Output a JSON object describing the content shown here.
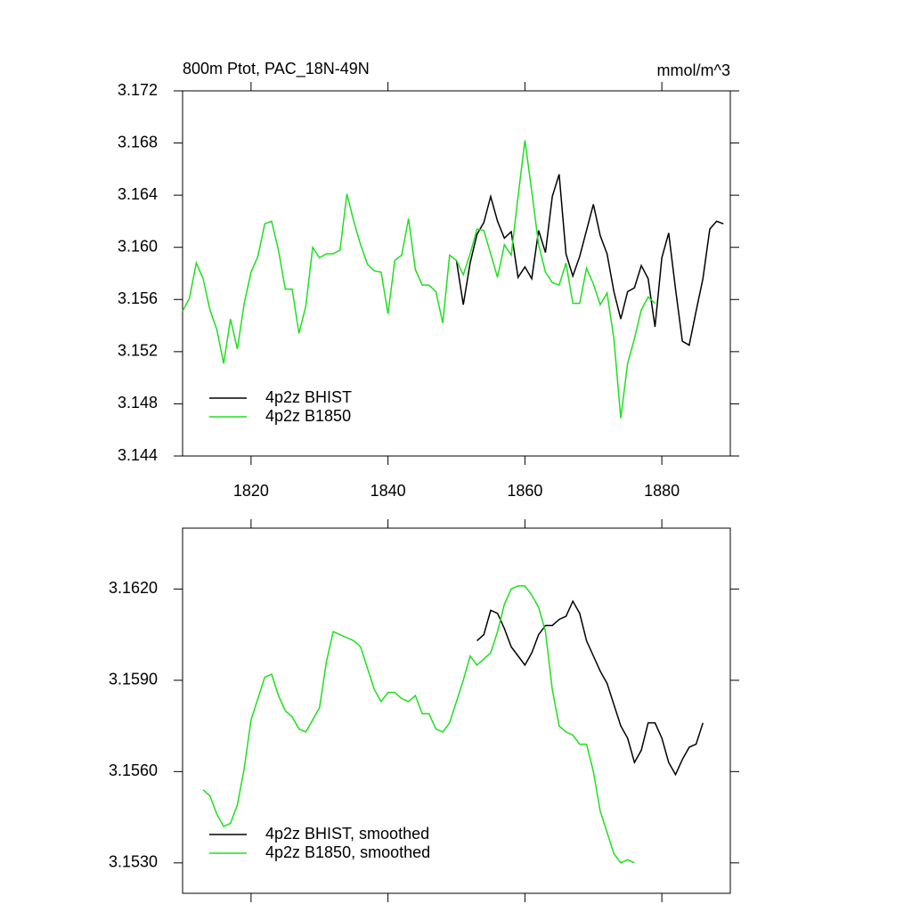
{
  "chart_data": [
    {
      "type": "line",
      "title": "800m Ptot, PAC_18N-49N",
      "units": "mmol/m^3",
      "xlim": [
        1810,
        1890
      ],
      "xticks": [
        1820,
        1840,
        1860,
        1880
      ],
      "show_xtick_labels": true,
      "ylim": [
        3.144,
        3.172
      ],
      "yticks": [
        3.144,
        3.148,
        3.152,
        3.156,
        {
          "value": 3.16,
          "label": "3.160"
        },
        3.164,
        3.168,
        3.172
      ],
      "legend": "lower left",
      "series": [
        {
          "name": "4p2z BHIST",
          "color": "#000000",
          "x": [
            1850,
            1851,
            1852,
            1853,
            1854,
            1855,
            1856,
            1857,
            1858,
            1859,
            1860,
            1861,
            1862,
            1863,
            1864,
            1865,
            1866,
            1867,
            1868,
            1869,
            1870,
            1871,
            1872,
            1873,
            1874,
            1875,
            1876,
            1877,
            1878,
            1879,
            1880,
            1881,
            1882,
            1883,
            1884,
            1885,
            1886,
            1887,
            1888,
            1889
          ],
          "values": [
            3.159,
            3.1556,
            3.1588,
            3.161,
            3.1619,
            3.1639,
            3.162,
            3.1607,
            3.1612,
            3.1577,
            3.1585,
            3.1576,
            3.1613,
            3.1596,
            3.1639,
            3.1656,
            3.1595,
            3.1578,
            3.1593,
            3.1613,
            3.1633,
            3.1609,
            3.1595,
            3.1566,
            3.1545,
            3.1566,
            3.1569,
            3.1586,
            3.1576,
            3.1539,
            3.1592,
            3.1611,
            3.1568,
            3.1528,
            3.1525,
            3.1551,
            3.1576,
            3.1614,
            3.162,
            3.1618
          ]
        },
        {
          "name": "4p2z B1850",
          "color": "#1ee01e",
          "x": [
            1810,
            1811,
            1812,
            1813,
            1814,
            1815,
            1816,
            1817,
            1818,
            1819,
            1820,
            1821,
            1822,
            1823,
            1824,
            1825,
            1826,
            1827,
            1828,
            1829,
            1830,
            1831,
            1832,
            1833,
            1834,
            1835,
            1836,
            1837,
            1838,
            1839,
            1840,
            1841,
            1842,
            1843,
            1844,
            1845,
            1846,
            1847,
            1848,
            1849,
            1850,
            1851,
            1852,
            1853,
            1854,
            1855,
            1856,
            1857,
            1858,
            1859,
            1860,
            1861,
            1862,
            1863,
            1864,
            1865,
            1866,
            1867,
            1868,
            1869,
            1870,
            1871,
            1872,
            1873,
            1874,
            1875,
            1876,
            1877,
            1878,
            1879
          ],
          "values": [
            3.1551,
            3.1561,
            3.1588,
            3.1576,
            3.1552,
            3.1537,
            3.1511,
            3.1545,
            3.1522,
            3.1557,
            3.1581,
            3.1593,
            3.1618,
            3.162,
            3.1598,
            3.1568,
            3.1568,
            3.1534,
            3.1555,
            3.16,
            3.1592,
            3.1595,
            3.1595,
            3.1598,
            3.1641,
            3.162,
            3.1602,
            3.1587,
            3.1582,
            3.1581,
            3.1549,
            3.159,
            3.1594,
            3.1622,
            3.1583,
            3.1571,
            3.1571,
            3.1566,
            3.1542,
            3.1594,
            3.159,
            3.1579,
            3.1595,
            3.1614,
            3.1613,
            3.1595,
            3.1577,
            3.1602,
            3.1594,
            3.1639,
            3.1682,
            3.1643,
            3.1602,
            3.1581,
            3.1573,
            3.1571,
            3.1588,
            3.1557,
            3.1557,
            3.1584,
            3.1572,
            3.1556,
            3.1565,
            3.153,
            3.1469,
            3.1511,
            3.153,
            3.1552,
            3.1562,
            3.1557
          ]
        }
      ]
    },
    {
      "type": "line",
      "xlim": [
        1810,
        1890
      ],
      "xticks": [
        1820,
        1840,
        1860,
        1880
      ],
      "show_xtick_labels": false,
      "ylim": [
        3.152,
        3.164
      ],
      "yticks": [
        {
          "value": 3.153,
          "label": "3.1530"
        },
        {
          "value": 3.156,
          "label": "3.1560"
        },
        {
          "value": 3.159,
          "label": "3.1590"
        },
        {
          "value": 3.162,
          "label": "3.1620"
        }
      ],
      "legend": "lower left",
      "series": [
        {
          "name": "4p2z BHIST, smoothed",
          "color": "#000000",
          "x": [
            1853,
            1854,
            1855,
            1856,
            1857,
            1858,
            1859,
            1860,
            1861,
            1862,
            1863,
            1864,
            1865,
            1866,
            1867,
            1868,
            1869,
            1870,
            1871,
            1872,
            1873,
            1874,
            1875,
            1876,
            1877,
            1878,
            1879,
            1880,
            1881,
            1882,
            1883,
            1884,
            1885,
            1886
          ],
          "values": [
            3.1603,
            3.1605,
            3.1613,
            3.1612,
            3.1607,
            3.1601,
            3.1598,
            3.1595,
            3.1599,
            3.1605,
            3.1608,
            3.1608,
            3.161,
            3.1611,
            3.1616,
            3.1612,
            3.1603,
            3.1598,
            3.1593,
            3.1589,
            3.1582,
            3.1575,
            3.1571,
            3.1563,
            3.1567,
            3.1576,
            3.1576,
            3.1571,
            3.1563,
            3.1559,
            3.1564,
            3.1568,
            3.1569,
            3.1576
          ]
        },
        {
          "name": "4p2z B1850, smoothed",
          "color": "#1ee01e",
          "x": [
            1813,
            1814,
            1815,
            1816,
            1817,
            1818,
            1819,
            1820,
            1821,
            1822,
            1823,
            1824,
            1825,
            1826,
            1827,
            1828,
            1829,
            1830,
            1831,
            1832,
            1833,
            1834,
            1835,
            1836,
            1837,
            1838,
            1839,
            1840,
            1841,
            1842,
            1843,
            1844,
            1845,
            1846,
            1847,
            1848,
            1849,
            1850,
            1851,
            1852,
            1853,
            1854,
            1855,
            1856,
            1857,
            1858,
            1859,
            1860,
            1861,
            1862,
            1863,
            1864,
            1865,
            1866,
            1867,
            1868,
            1869,
            1870,
            1871,
            1872,
            1873,
            1874,
            1875,
            1876
          ],
          "values": [
            3.1554,
            3.1552,
            3.1546,
            3.1542,
            3.1543,
            3.1549,
            3.1561,
            3.1577,
            3.1584,
            3.1591,
            3.1592,
            3.1585,
            3.158,
            3.1578,
            3.1574,
            3.1573,
            3.1577,
            3.1581,
            3.1596,
            3.1606,
            3.1605,
            3.1604,
            3.1603,
            3.1601,
            3.1594,
            3.1587,
            3.1583,
            3.1586,
            3.1586,
            3.1584,
            3.1583,
            3.1585,
            3.1579,
            3.1579,
            3.1574,
            3.1573,
            3.1576,
            3.1583,
            3.159,
            3.1598,
            3.1595,
            3.1597,
            3.1599,
            3.1606,
            3.1615,
            3.162,
            3.1621,
            3.1621,
            3.1618,
            3.1614,
            3.1606,
            3.1587,
            3.1575,
            3.1573,
            3.1572,
            3.1569,
            3.1569,
            3.156,
            3.1547,
            3.154,
            3.1533,
            3.153,
            3.1531,
            3.153
          ]
        }
      ]
    }
  ]
}
